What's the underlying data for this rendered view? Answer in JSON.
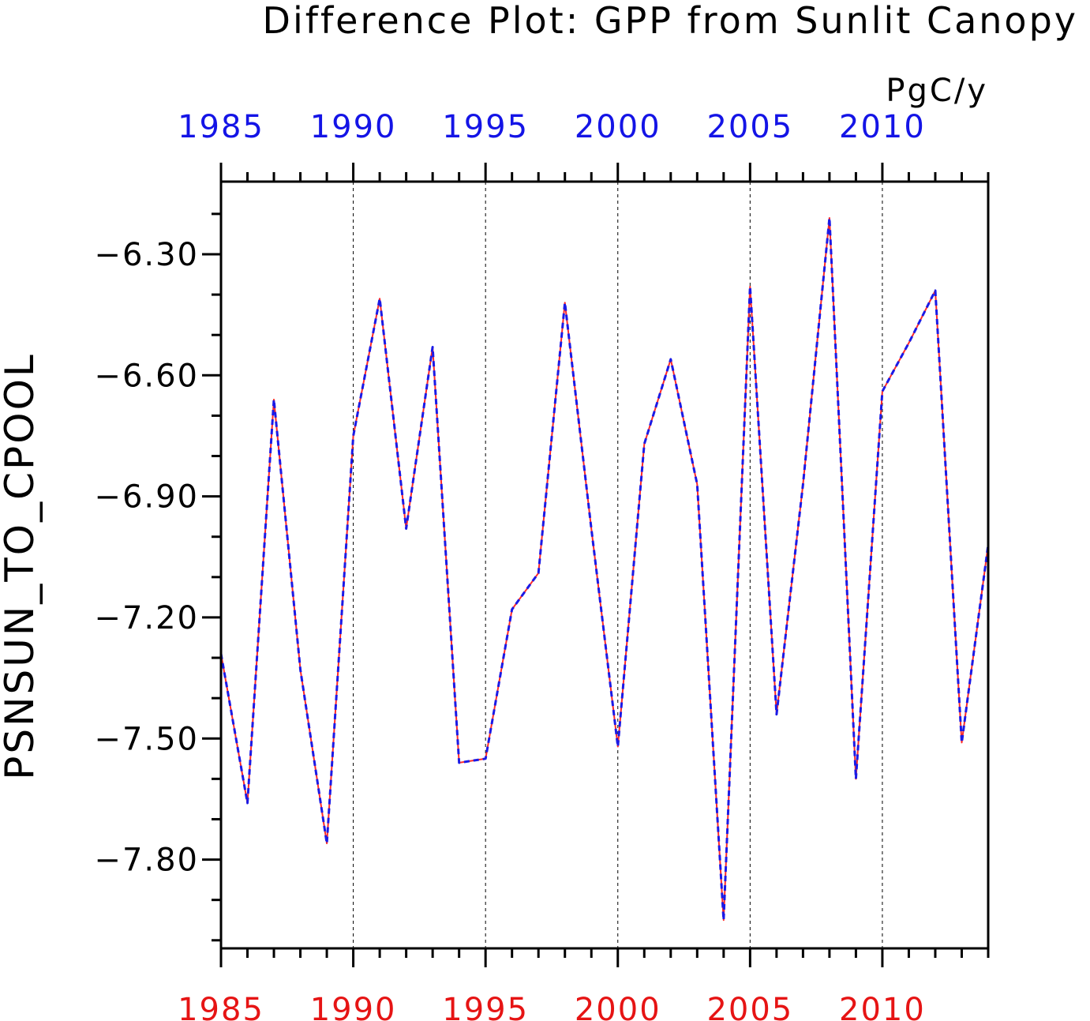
{
  "chart_data": {
    "type": "line",
    "title": "Difference Plot: GPP from Sunlit Canopy",
    "units": "PgC/y",
    "ylabel": "PSNSUN_TO_CPOOL",
    "xlabel": "",
    "xlim": [
      1985,
      2014
    ],
    "ylim": [
      -8.02,
      -6.12
    ],
    "x_ticks": [
      1985,
      1990,
      1995,
      2000,
      2005,
      2010
    ],
    "y_ticks": [
      -6.3,
      -6.6,
      -6.9,
      -7.2,
      -7.5,
      -7.8
    ],
    "y_tick_labels": [
      "−6.30",
      "−6.60",
      "−6.90",
      "−7.20",
      "−7.50",
      "−7.80"
    ],
    "x_tick_labels_top": [
      "1985",
      "1990",
      "1995",
      "2000",
      "2005",
      "2010"
    ],
    "x_tick_labels_bottom": [
      "1985",
      "1990",
      "1995",
      "2000",
      "2005",
      "2010"
    ],
    "grid": "vertical dashed at major x ticks",
    "colors": {
      "top_axis_labels": "#1414e6",
      "bottom_axis_labels": "#e61414",
      "series_a": "#ff2a2a",
      "series_b": "#1a1ae6"
    },
    "x": [
      1985,
      1986,
      1987,
      1988,
      1989,
      1990,
      1991,
      1992,
      1993,
      1994,
      1995,
      1996,
      1997,
      1998,
      1999,
      2000,
      2001,
      2002,
      2003,
      2004,
      2005,
      2006,
      2007,
      2008,
      2009,
      2010,
      2011,
      2012,
      2013,
      2014
    ],
    "series": [
      {
        "style": "solid",
        "color": "#ff2a2a",
        "values": [
          -7.29,
          -7.66,
          -6.66,
          -7.33,
          -7.76,
          -6.75,
          -6.41,
          -6.98,
          -6.53,
          -7.56,
          -7.55,
          -7.18,
          -7.09,
          -6.42,
          -6.98,
          -7.52,
          -6.77,
          -6.56,
          -6.87,
          -7.95,
          -6.38,
          -7.44,
          -6.87,
          -6.21,
          -7.6,
          -6.64,
          -6.52,
          -6.39,
          -7.51,
          -7.02
        ]
      },
      {
        "style": "dashed",
        "color": "#1a1ae6",
        "values": [
          -7.29,
          -7.66,
          -6.66,
          -7.33,
          -7.76,
          -6.75,
          -6.41,
          -6.98,
          -6.53,
          -7.56,
          -7.55,
          -7.18,
          -7.09,
          -6.42,
          -6.98,
          -7.52,
          -6.77,
          -6.56,
          -6.87,
          -7.95,
          -6.38,
          -7.44,
          -6.87,
          -6.21,
          -7.6,
          -6.64,
          -6.52,
          -6.39,
          -7.51,
          -7.02
        ]
      }
    ]
  }
}
